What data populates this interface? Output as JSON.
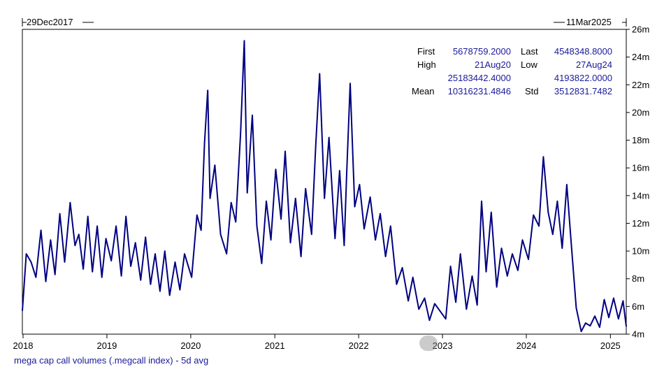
{
  "chart_data": {
    "type": "line",
    "caption": "mega cap call volumes (.megcall index) - 5d avg",
    "range_start_label": "29Dec2017",
    "range_end_label": "11Mar2025",
    "x_tick_labels": [
      "2018",
      "2019",
      "2020",
      "2021",
      "2022",
      "2023",
      "2024",
      "2025"
    ],
    "y_tick_labels": [
      "4m",
      "6m",
      "8m",
      "10m",
      "12m",
      "14m",
      "16m",
      "18m",
      "20m",
      "22m",
      "24m",
      "26m"
    ],
    "ylim": [
      4000000,
      26000000
    ],
    "xlim": [
      "2017-12-29",
      "2025-03-11"
    ],
    "y_axis_side": "right",
    "grid": false,
    "line_color": "#000080",
    "text_color": "#1a1a9a",
    "stats": {
      "first_label": "First",
      "first_value": "5678759.2000",
      "last_label": "Last",
      "last_value": "4548348.8000",
      "high_label": "High",
      "high_date": "21Aug20",
      "high_value": "25183442.4000",
      "low_label": "Low",
      "low_date": "27Aug24",
      "low_value": "4193822.0000",
      "mean_label": "Mean",
      "mean_value": "10316231.4846",
      "std_label": "Std",
      "std_value": "3512831.7482"
    },
    "series": [
      {
        "x": [
          "2017-12-29",
          "2018-01-15",
          "2018-02-05",
          "2018-02-26",
          "2018-03-20",
          "2018-04-10",
          "2018-05-01",
          "2018-05-20",
          "2018-06-10",
          "2018-07-01",
          "2018-07-25",
          "2018-08-15",
          "2018-09-01",
          "2018-09-20",
          "2018-10-10",
          "2018-10-30",
          "2018-11-20",
          "2018-12-10",
          "2018-12-28",
          "2019-01-20",
          "2019-02-10",
          "2019-03-05",
          "2019-03-25",
          "2019-04-15",
          "2019-05-05",
          "2019-05-28",
          "2019-06-18",
          "2019-07-10",
          "2019-07-30",
          "2019-08-20",
          "2019-09-10",
          "2019-10-01",
          "2019-10-25",
          "2019-11-15",
          "2019-12-05",
          "2020-01-05",
          "2020-01-28",
          "2020-02-15",
          "2020-03-01",
          "2020-03-15",
          "2020-03-25",
          "2020-04-15",
          "2020-05-10",
          "2020-06-05",
          "2020-06-25",
          "2020-07-15",
          "2020-08-05",
          "2020-08-21",
          "2020-09-03",
          "2020-09-25",
          "2020-10-15",
          "2020-11-05",
          "2020-11-25",
          "2020-12-15",
          "2021-01-05",
          "2021-01-28",
          "2021-02-15",
          "2021-03-10",
          "2021-04-01",
          "2021-04-25",
          "2021-05-15",
          "2021-06-10",
          "2021-06-28",
          "2021-07-15",
          "2021-08-05",
          "2021-08-25",
          "2021-09-20",
          "2021-10-10",
          "2021-10-30",
          "2021-11-10",
          "2021-11-25",
          "2021-12-15",
          "2022-01-05",
          "2022-01-25",
          "2022-02-20",
          "2022-03-15",
          "2022-04-05",
          "2022-04-28",
          "2022-05-20",
          "2022-06-15",
          "2022-07-10",
          "2022-08-05",
          "2022-08-25",
          "2022-09-20",
          "2022-10-15",
          "2022-11-05",
          "2022-11-28",
          "2022-12-20",
          "2023-01-15",
          "2023-02-05",
          "2023-02-28",
          "2023-03-20",
          "2023-04-15",
          "2023-05-10",
          "2023-06-01",
          "2023-06-20",
          "2023-07-10",
          "2023-08-01",
          "2023-08-25",
          "2023-09-15",
          "2023-10-10",
          "2023-11-01",
          "2023-11-25",
          "2023-12-15",
          "2024-01-10",
          "2024-02-01",
          "2024-02-25",
          "2024-03-15",
          "2024-04-05",
          "2024-04-25",
          "2024-05-15",
          "2024-06-05",
          "2024-06-25",
          "2024-07-15",
          "2024-08-05",
          "2024-08-27",
          "2024-09-15",
          "2024-10-05",
          "2024-10-25",
          "2024-11-15",
          "2024-12-05",
          "2024-12-25",
          "2025-01-15",
          "2025-02-05",
          "2025-02-25",
          "2025-03-11"
        ],
        "values": [
          5678759,
          9800000,
          9200000,
          8100000,
          11500000,
          7800000,
          10800000,
          8300000,
          12700000,
          9200000,
          13500000,
          10400000,
          11200000,
          8700000,
          12500000,
          8500000,
          11800000,
          8100000,
          10900000,
          9300000,
          11800000,
          8200000,
          12500000,
          8900000,
          10600000,
          7900000,
          11000000,
          7600000,
          9800000,
          7100000,
          10000000,
          6800000,
          9200000,
          7200000,
          9800000,
          8100000,
          12600000,
          11500000,
          17800000,
          21600000,
          13800000,
          16200000,
          11200000,
          9800000,
          13500000,
          12100000,
          18500000,
          25183442,
          14200000,
          19800000,
          11800000,
          9100000,
          13600000,
          10800000,
          15900000,
          12300000,
          17200000,
          10600000,
          13800000,
          9600000,
          14500000,
          11200000,
          17600000,
          22800000,
          13800000,
          18200000,
          10900000,
          15800000,
          10400000,
          15600000,
          22100000,
          13200000,
          14800000,
          11600000,
          13900000,
          10800000,
          12700000,
          9600000,
          11800000,
          7600000,
          8800000,
          6400000,
          8100000,
          5800000,
          6600000,
          5000000,
          6200000,
          5700000,
          5100000,
          8900000,
          6300000,
          9800000,
          5800000,
          8200000,
          6100000,
          13600000,
          8500000,
          12800000,
          7400000,
          10200000,
          8200000,
          9800000,
          8600000,
          10800000,
          9400000,
          12600000,
          11800000,
          16800000,
          12800000,
          11200000,
          13600000,
          10200000,
          14800000,
          10400000,
          5900000,
          4193822,
          4800000,
          4600000,
          5300000,
          4500000,
          6500000,
          5200000,
          6600000,
          5100000,
          6400000,
          4548349
        ]
      }
    ]
  }
}
